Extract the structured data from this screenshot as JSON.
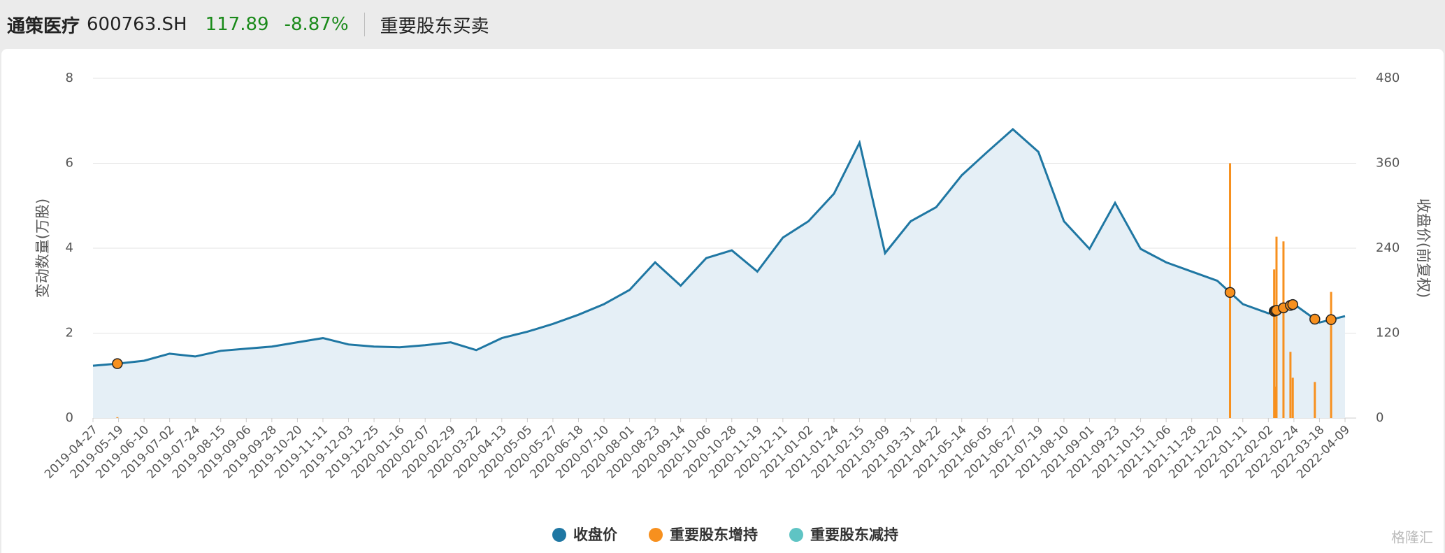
{
  "header": {
    "name": "通策医疗",
    "code": "600763.SH",
    "price": "117.89",
    "change": "-8.87%",
    "section": "重要股东买卖"
  },
  "chart_data": {
    "type": "combo",
    "y_label": "变动数量(万股)",
    "y2_label": "收盘价(前复权)",
    "categories": [
      "2019-04-27",
      "2019-05-19",
      "2019-06-10",
      "2019-07-02",
      "2019-07-24",
      "2019-08-15",
      "2019-09-06",
      "2019-09-28",
      "2019-10-20",
      "2019-11-11",
      "2019-12-03",
      "2019-12-25",
      "2020-01-16",
      "2020-02-07",
      "2020-02-29",
      "2020-03-22",
      "2020-04-13",
      "2020-05-05",
      "2020-05-27",
      "2020-06-18",
      "2020-07-10",
      "2020-08-01",
      "2020-08-23",
      "2020-09-14",
      "2020-10-06",
      "2020-10-28",
      "2020-11-19",
      "2020-12-11",
      "2021-01-02",
      "2021-01-24",
      "2021-02-15",
      "2021-03-09",
      "2021-03-31",
      "2021-04-22",
      "2021-05-14",
      "2021-06-05",
      "2021-06-27",
      "2021-07-19",
      "2021-08-10",
      "2021-09-01",
      "2021-09-23",
      "2021-10-15",
      "2021-11-06",
      "2021-11-28",
      "2021-12-20",
      "2022-01-11",
      "2022-02-02",
      "2022-02-24",
      "2022-03-18",
      "2022-04-09"
    ],
    "ylim": [
      0,
      8
    ],
    "yticks": [
      0,
      2,
      4,
      6,
      8
    ],
    "y2lim": [
      0,
      480
    ],
    "y2ticks": [
      0,
      120,
      240,
      360,
      480
    ],
    "grid": true,
    "series": [
      {
        "name": "收盘价",
        "color": "#1f77a3",
        "fill": "#e5eff6",
        "axis": "y2",
        "type": "area",
        "values": [
          74,
          77,
          81,
          91,
          87,
          95,
          98,
          101,
          107,
          113,
          104,
          101,
          100,
          103,
          107,
          96,
          113,
          122,
          133,
          146,
          161,
          181,
          220,
          187,
          226,
          237,
          207,
          255,
          278,
          317,
          389,
          233,
          278,
          298,
          343,
          376,
          408,
          376,
          278,
          239,
          304,
          239,
          220,
          207,
          194,
          161,
          148,
          161,
          135,
          144
        ]
      },
      {
        "name": "重要股东增持",
        "color": "#f7901e",
        "type": "bar",
        "x": [
          "2019-05-18",
          "2021-12-31",
          "2022-02-07",
          "2022-02-08",
          "2022-02-09",
          "2022-02-15",
          "2022-02-21",
          "2022-02-23",
          "2022-03-14",
          "2022-03-28"
        ],
        "values": [
          0.02,
          6.0,
          3.5,
          0.74,
          4.27,
          4.16,
          1.56,
          0.95,
          0.85,
          2.97
        ]
      },
      {
        "name": "重要股东减持",
        "color": "#5fc4c4",
        "type": "bar",
        "x": [],
        "values": []
      }
    ],
    "watermark": "格隆汇"
  }
}
